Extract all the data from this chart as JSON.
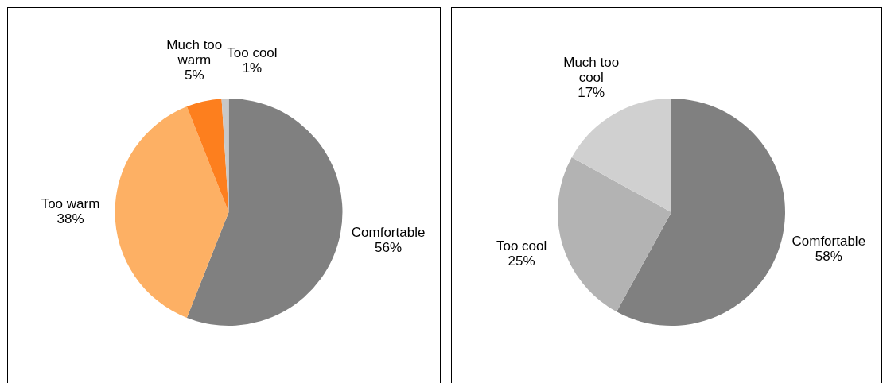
{
  "chart_data": [
    {
      "type": "pie",
      "categories": [
        "Comfortable",
        "Too warm",
        "Much too warm",
        "Too cool"
      ],
      "values": [
        56,
        38,
        5,
        1
      ],
      "colors": [
        "#808080",
        "#fdb064",
        "#fd7f1e",
        "#c8c8c8"
      ],
      "value_labels": [
        "56%",
        "38%",
        "5%",
        "1%"
      ]
    },
    {
      "type": "pie",
      "categories": [
        "Comfortable",
        "Too cool",
        "Much too cool"
      ],
      "values": [
        58,
        25,
        17
      ],
      "colors": [
        "#808080",
        "#b3b3b3",
        "#d0d0d0"
      ],
      "value_labels": [
        "58%",
        "25%",
        "17%"
      ]
    }
  ]
}
